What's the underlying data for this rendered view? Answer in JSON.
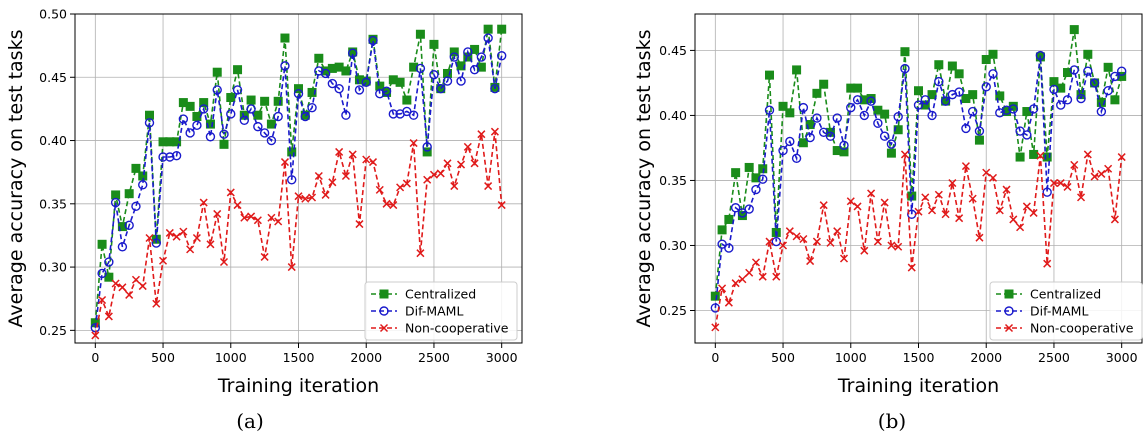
{
  "chart_data": [
    {
      "type": "line",
      "caption": "(a)",
      "xlabel": "Training iteration",
      "ylabel": "Average accuracy on test tasks",
      "xlim": [
        -150,
        3150
      ],
      "ylim": [
        0.24,
        0.5
      ],
      "xticks": [
        0,
        500,
        1000,
        1500,
        2000,
        2500,
        3000
      ],
      "yticks": [
        0.25,
        0.3,
        0.35,
        0.4,
        0.45,
        0.5
      ],
      "ytick_labels": [
        "0.25",
        "0.30",
        "0.35",
        "0.40",
        "0.45",
        "0.50"
      ],
      "grid": true,
      "legend_position": "lower-right",
      "x": [
        0,
        50,
        100,
        150,
        200,
        250,
        300,
        350,
        400,
        450,
        500,
        550,
        600,
        650,
        700,
        750,
        800,
        850,
        900,
        950,
        1000,
        1050,
        1100,
        1150,
        1200,
        1250,
        1300,
        1350,
        1400,
        1450,
        1500,
        1550,
        1600,
        1650,
        1700,
        1750,
        1800,
        1850,
        1900,
        1950,
        2000,
        2050,
        2100,
        2150,
        2200,
        2250,
        2300,
        2350,
        2400,
        2450,
        2500,
        2550,
        2600,
        2650,
        2700,
        2750,
        2800,
        2850,
        2900,
        2950,
        3000
      ],
      "series": [
        {
          "name": "Centralized",
          "color": "#1a8c1a",
          "marker": "square",
          "values": [
            0.256,
            0.318,
            0.292,
            0.357,
            0.332,
            0.358,
            0.378,
            0.372,
            0.42,
            0.322,
            0.399,
            0.399,
            0.399,
            0.43,
            0.427,
            0.419,
            0.43,
            0.413,
            0.454,
            0.397,
            0.434,
            0.456,
            0.42,
            0.432,
            0.42,
            0.431,
            0.413,
            0.431,
            0.481,
            0.391,
            0.441,
            0.42,
            0.438,
            0.465,
            0.455,
            0.457,
            0.458,
            0.455,
            0.47,
            0.448,
            0.447,
            0.48,
            0.443,
            0.438,
            0.448,
            0.446,
            0.432,
            0.458,
            0.484,
            0.391,
            0.476,
            0.441,
            0.453,
            0.47,
            0.459,
            0.466,
            0.472,
            0.458,
            0.488,
            0.442,
            0.488
          ]
        },
        {
          "name": "Dif-MAML",
          "color": "#1a1acc",
          "marker": "circle",
          "values": [
            0.252,
            0.295,
            0.304,
            0.351,
            0.316,
            0.333,
            0.348,
            0.365,
            0.414,
            0.319,
            0.387,
            0.387,
            0.388,
            0.417,
            0.406,
            0.412,
            0.425,
            0.403,
            0.44,
            0.405,
            0.421,
            0.44,
            0.416,
            0.425,
            0.411,
            0.406,
            0.4,
            0.419,
            0.459,
            0.369,
            0.437,
            0.419,
            0.426,
            0.455,
            0.453,
            0.445,
            0.441,
            0.42,
            0.469,
            0.44,
            0.446,
            0.479,
            0.437,
            0.439,
            0.421,
            0.421,
            0.423,
            0.42,
            0.457,
            0.395,
            0.452,
            0.441,
            0.447,
            0.466,
            0.447,
            0.47,
            0.456,
            0.466,
            0.481,
            0.441,
            0.467
          ]
        },
        {
          "name": "Non-cooperative",
          "color": "#e01a1a",
          "marker": "x",
          "values": [
            0.246,
            0.274,
            0.261,
            0.287,
            0.284,
            0.278,
            0.29,
            0.285,
            0.323,
            0.271,
            0.305,
            0.327,
            0.324,
            0.328,
            0.314,
            0.323,
            0.351,
            0.318,
            0.342,
            0.304,
            0.359,
            0.349,
            0.339,
            0.34,
            0.337,
            0.308,
            0.339,
            0.336,
            0.383,
            0.3,
            0.356,
            0.354,
            0.355,
            0.372,
            0.357,
            0.367,
            0.391,
            0.372,
            0.389,
            0.334,
            0.385,
            0.383,
            0.361,
            0.35,
            0.349,
            0.363,
            0.366,
            0.398,
            0.311,
            0.369,
            0.373,
            0.374,
            0.382,
            0.364,
            0.381,
            0.395,
            0.382,
            0.405,
            0.364,
            0.407,
            0.349
          ]
        }
      ]
    },
    {
      "type": "line",
      "caption": "(b)",
      "xlabel": "Training iteration",
      "ylabel": "Average accuracy on test tasks",
      "xlim": [
        -150,
        3150
      ],
      "ylim": [
        0.225,
        0.478
      ],
      "xticks": [
        0,
        500,
        1000,
        1500,
        2000,
        2500,
        3000
      ],
      "yticks": [
        0.25,
        0.3,
        0.35,
        0.4,
        0.45
      ],
      "ytick_labels": [
        "0.25",
        "0.30",
        "0.35",
        "0.40",
        "0.45"
      ],
      "grid": true,
      "legend_position": "lower-right",
      "x": [
        0,
        50,
        100,
        150,
        200,
        250,
        300,
        350,
        400,
        450,
        500,
        550,
        600,
        650,
        700,
        750,
        800,
        850,
        900,
        950,
        1000,
        1050,
        1100,
        1150,
        1200,
        1250,
        1300,
        1350,
        1400,
        1450,
        1500,
        1550,
        1600,
        1650,
        1700,
        1750,
        1800,
        1850,
        1900,
        1950,
        2000,
        2050,
        2100,
        2150,
        2200,
        2250,
        2300,
        2350,
        2400,
        2450,
        2500,
        2550,
        2600,
        2650,
        2700,
        2750,
        2800,
        2850,
        2900,
        2950,
        3000
      ],
      "series": [
        {
          "name": "Centralized",
          "color": "#1a8c1a",
          "marker": "square",
          "values": [
            0.261,
            0.312,
            0.32,
            0.356,
            0.323,
            0.36,
            0.352,
            0.359,
            0.431,
            0.31,
            0.407,
            0.402,
            0.435,
            0.379,
            0.393,
            0.417,
            0.424,
            0.387,
            0.373,
            0.372,
            0.421,
            0.421,
            0.412,
            0.413,
            0.404,
            0.401,
            0.371,
            0.389,
            0.449,
            0.338,
            0.419,
            0.408,
            0.416,
            0.439,
            0.411,
            0.438,
            0.432,
            0.413,
            0.416,
            0.381,
            0.443,
            0.447,
            0.415,
            0.403,
            0.407,
            0.368,
            0.403,
            0.37,
            0.445,
            0.368,
            0.426,
            0.421,
            0.433,
            0.466,
            0.416,
            0.447,
            0.425,
            0.41,
            0.437,
            0.412,
            0.43
          ]
        },
        {
          "name": "Dif-MAML",
          "color": "#1a1acc",
          "marker": "circle",
          "values": [
            0.252,
            0.301,
            0.298,
            0.329,
            0.325,
            0.328,
            0.343,
            0.351,
            0.404,
            0.303,
            0.373,
            0.38,
            0.367,
            0.406,
            0.383,
            0.398,
            0.387,
            0.384,
            0.398,
            0.377,
            0.406,
            0.412,
            0.4,
            0.411,
            0.394,
            0.384,
            0.378,
            0.399,
            0.436,
            0.324,
            0.408,
            0.412,
            0.4,
            0.426,
            0.411,
            0.416,
            0.418,
            0.39,
            0.403,
            0.388,
            0.422,
            0.432,
            0.402,
            0.404,
            0.405,
            0.388,
            0.385,
            0.405,
            0.446,
            0.341,
            0.42,
            0.408,
            0.412,
            0.435,
            0.413,
            0.434,
            0.425,
            0.403,
            0.419,
            0.43,
            0.434
          ]
        },
        {
          "name": "Non-cooperative",
          "color": "#e01a1a",
          "marker": "x",
          "values": [
            0.237,
            0.267,
            0.256,
            0.271,
            0.274,
            0.279,
            0.287,
            0.276,
            0.303,
            0.276,
            0.3,
            0.311,
            0.307,
            0.305,
            0.288,
            0.303,
            0.331,
            0.302,
            0.311,
            0.29,
            0.334,
            0.33,
            0.296,
            0.34,
            0.303,
            0.333,
            0.3,
            0.299,
            0.37,
            0.283,
            0.326,
            0.337,
            0.327,
            0.339,
            0.324,
            0.348,
            0.321,
            0.361,
            0.336,
            0.306,
            0.356,
            0.352,
            0.327,
            0.343,
            0.32,
            0.314,
            0.33,
            0.325,
            0.369,
            0.286,
            0.348,
            0.348,
            0.345,
            0.362,
            0.337,
            0.37,
            0.353,
            0.355,
            0.359,
            0.32,
            0.368
          ]
        }
      ]
    }
  ]
}
